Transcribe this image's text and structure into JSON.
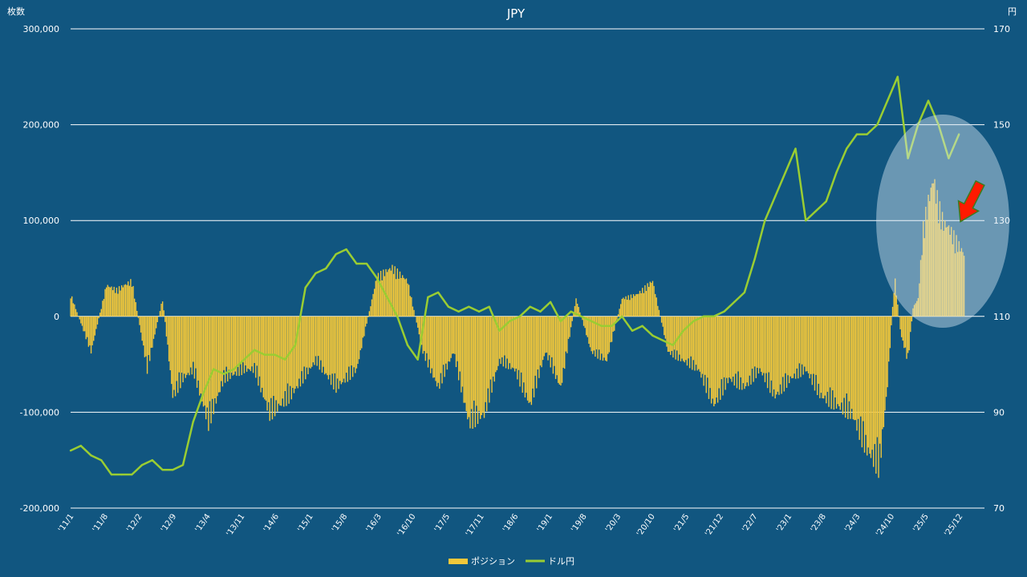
{
  "chart_data": {
    "type": "bar+line",
    "title": "JPY",
    "ylabel_left": "枚数",
    "ylabel_right": "円",
    "ylim_left": [
      -200000,
      300000
    ],
    "ylim_right": [
      70,
      170
    ],
    "left_ticks": [
      "300,000",
      "200,000",
      "100,000",
      "0",
      "-100,000",
      "-200,000"
    ],
    "left_tick_values": [
      300000,
      200000,
      100000,
      0,
      -100000,
      -200000
    ],
    "right_ticks": [
      "170",
      "150",
      "130",
      "110",
      "90",
      "70"
    ],
    "right_tick_values": [
      170,
      150,
      130,
      110,
      90,
      70
    ],
    "grid": true,
    "legend_position": "bottom",
    "x_tick_labels": [
      "'11/1",
      "'11/8",
      "'12/2",
      "'12/9",
      "'13/4",
      "'13/11",
      "'14/6",
      "'15/1",
      "'15/8",
      "'16/3",
      "'16/10",
      "'17/5",
      "'17/11",
      "'18/6",
      "'19/1",
      "'19/8",
      "'20/3",
      "'20/10",
      "'21/5",
      "'21/12",
      "'22/7",
      "'23/1",
      "'23/8",
      "'24/3",
      "'24/10",
      "'25/5",
      "'25/12"
    ],
    "x_range": [
      2011.0,
      2025.917
    ],
    "series": [
      {
        "name": "ポジション",
        "type": "bar",
        "color": "#f2c73a",
        "axis": "left",
        "x": [
          2011.0,
          2011.333,
          2011.583,
          2011.75,
          2012.0,
          2012.25,
          2012.5,
          2012.667,
          2012.833,
          2013.0,
          2013.25,
          2013.5,
          2013.833,
          2014.0,
          2014.25,
          2014.583,
          2015.0,
          2015.333,
          2015.667,
          2016.0,
          2016.25,
          2016.5,
          2016.75,
          2017.0,
          2017.25,
          2017.5,
          2017.75,
          2018.0,
          2018.25,
          2018.5,
          2018.75,
          2019.0,
          2019.25,
          2019.5,
          2019.75,
          2020.0,
          2020.25,
          2020.5,
          2020.75,
          2021.0,
          2021.25,
          2021.5,
          2021.75,
          2022.0,
          2022.25,
          2022.5,
          2022.75,
          2023.0,
          2023.25,
          2023.5,
          2023.75,
          2024.0,
          2024.2,
          2024.33,
          2024.45,
          2024.55,
          2024.667,
          2024.75,
          2024.833,
          2024.917,
          2025.0,
          2025.083,
          2025.167,
          2025.25,
          2025.333,
          2025.417,
          2025.5,
          2025.583
        ],
        "values": [
          25000,
          -40000,
          35000,
          30000,
          40000,
          -60000,
          20000,
          -90000,
          -70000,
          -60000,
          -120000,
          -70000,
          -60000,
          -60000,
          -110000,
          -90000,
          -50000,
          -80000,
          -60000,
          45000,
          55000,
          40000,
          -40000,
          -80000,
          -40000,
          -120000,
          -110000,
          -50000,
          -60000,
          -100000,
          -40000,
          -80000,
          20000,
          -40000,
          -50000,
          20000,
          25000,
          40000,
          -40000,
          -50000,
          -60000,
          -100000,
          -70000,
          -80000,
          -60000,
          -90000,
          -70000,
          -60000,
          -90000,
          -100000,
          -110000,
          -150000,
          -170000,
          -80000,
          45000,
          -20000,
          -50000,
          10000,
          20000,
          100000,
          130000,
          155000,
          125000,
          105000,
          100000,
          90000,
          80000,
          70000
        ]
      },
      {
        "name": "ドル円",
        "type": "line",
        "color": "#9acd32",
        "axis": "right",
        "x": [
          2011.0,
          2011.167,
          2011.333,
          2011.5,
          2011.667,
          2011.833,
          2012.0,
          2012.167,
          2012.333,
          2012.5,
          2012.667,
          2012.833,
          2013.0,
          2013.167,
          2013.333,
          2013.5,
          2013.667,
          2013.833,
          2014.0,
          2014.167,
          2014.333,
          2014.5,
          2014.667,
          2014.833,
          2015.0,
          2015.167,
          2015.333,
          2015.5,
          2015.667,
          2015.833,
          2016.0,
          2016.167,
          2016.333,
          2016.5,
          2016.667,
          2016.833,
          2017.0,
          2017.167,
          2017.333,
          2017.5,
          2017.667,
          2017.833,
          2018.0,
          2018.167,
          2018.333,
          2018.5,
          2018.667,
          2018.833,
          2019.0,
          2019.167,
          2019.333,
          2019.5,
          2019.667,
          2019.833,
          2020.0,
          2020.167,
          2020.333,
          2020.5,
          2020.667,
          2020.833,
          2021.0,
          2021.167,
          2021.333,
          2021.5,
          2021.667,
          2021.833,
          2022.0,
          2022.167,
          2022.333,
          2022.5,
          2022.667,
          2022.833,
          2023.0,
          2023.167,
          2023.333,
          2023.5,
          2023.667,
          2023.833,
          2024.0,
          2024.167,
          2024.333,
          2024.5,
          2024.667,
          2024.833,
          2025.0,
          2025.167,
          2025.333,
          2025.5
        ],
        "values": [
          82,
          83,
          81,
          80,
          77,
          77,
          77,
          79,
          80,
          78,
          78,
          79,
          88,
          94,
          99,
          98,
          99,
          101,
          103,
          102,
          102,
          101,
          104,
          116,
          119,
          120,
          123,
          124,
          121,
          121,
          118,
          114,
          110,
          104,
          101,
          114,
          115,
          112,
          111,
          112,
          111,
          112,
          107,
          109,
          110,
          112,
          111,
          113,
          109,
          111,
          110,
          109,
          108,
          108,
          110,
          107,
          108,
          106,
          105,
          104,
          107,
          109,
          110,
          110,
          111,
          113,
          115,
          122,
          130,
          135,
          140,
          145,
          130,
          132,
          134,
          140,
          145,
          148,
          148,
          150,
          155,
          160,
          143,
          150,
          155,
          150,
          143,
          148
        ]
      }
    ]
  }
}
